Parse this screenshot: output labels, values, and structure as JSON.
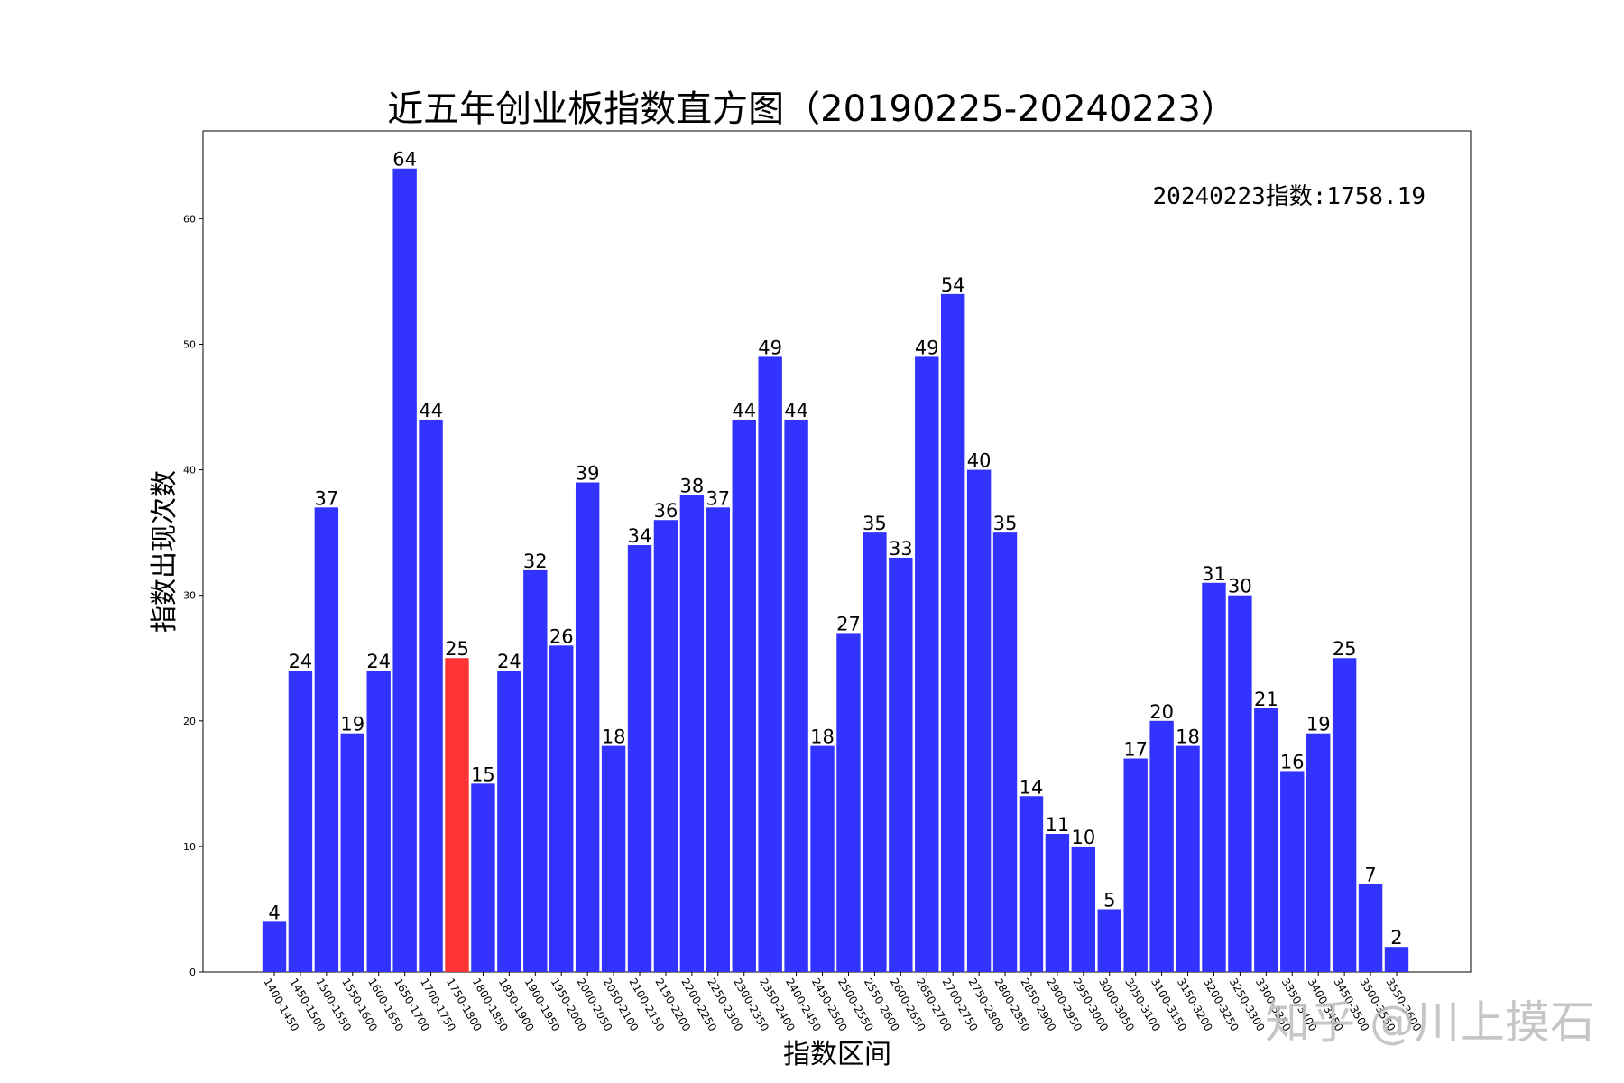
{
  "chart_data": {
    "type": "bar",
    "title": "近五年创业板指数直方图（20190225-20240223）",
    "xlabel": "指数区间",
    "ylabel": "指数出现次数",
    "ylim": [
      0,
      67
    ],
    "yticks": [
      0,
      10,
      20,
      30,
      40,
      50,
      60
    ],
    "grid": false,
    "annotation": "20240223指数:1758.19",
    "highlight_category": "1750-1800",
    "colors": {
      "bar": "#3333ff",
      "highlight": "#ff3333",
      "frame": "#000000"
    },
    "categories": [
      "1400-1450",
      "1450-1500",
      "1500-1550",
      "1550-1600",
      "1600-1650",
      "1650-1700",
      "1700-1750",
      "1750-1800",
      "1800-1850",
      "1850-1900",
      "1900-1950",
      "1950-2000",
      "2000-2050",
      "2050-2100",
      "2100-2150",
      "2150-2200",
      "2200-2250",
      "2250-2300",
      "2300-2350",
      "2350-2400",
      "2400-2450",
      "2450-2500",
      "2500-2550",
      "2550-2600",
      "2600-2650",
      "2650-2700",
      "2700-2750",
      "2750-2800",
      "2800-2850",
      "2850-2900",
      "2900-2950",
      "2950-3000",
      "3000-3050",
      "3050-3100",
      "3100-3150",
      "3150-3200",
      "3200-3250",
      "3250-3300",
      "3300-3350",
      "3350-3400",
      "3400-3450",
      "3450-3500",
      "3500-3550",
      "3550-3600"
    ],
    "values": [
      4,
      24,
      37,
      19,
      24,
      64,
      44,
      25,
      15,
      24,
      32,
      26,
      39,
      18,
      34,
      36,
      38,
      37,
      44,
      49,
      44,
      18,
      27,
      35,
      33,
      49,
      54,
      40,
      35,
      14,
      11,
      10,
      5,
      17,
      20,
      18,
      31,
      30,
      21,
      16,
      19,
      25,
      7,
      2
    ]
  },
  "watermark": "知乎 @川上摸石"
}
